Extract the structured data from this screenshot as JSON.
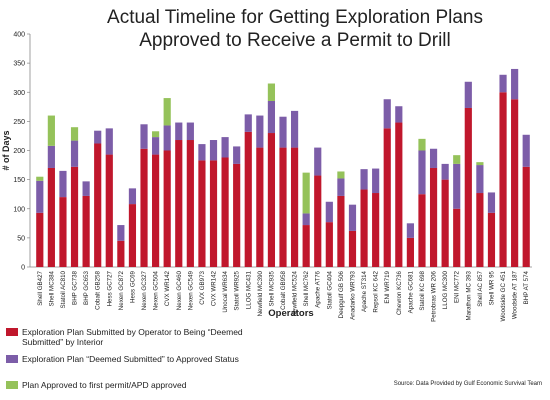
{
  "chart_data": {
    "type": "bar",
    "stacked": true,
    "title_line1": "Actual Timeline for Getting Exploration Plans",
    "title_line2": "Approved to Receive a Permit to Drill",
    "xlabel": "Operators",
    "ylabel": "# of Days",
    "ylim": [
      0,
      400
    ],
    "yticks": [
      0,
      50,
      100,
      150,
      200,
      250,
      300,
      350,
      400
    ],
    "grid": false,
    "legend_position": "bottom-left",
    "source": "Source: Data Provided by Gulf Economic Survival Team",
    "categories": [
      "Shell GB427",
      "Shell MC384",
      "Statoil AC810",
      "BHP GC738",
      "BHP GC653",
      "Cobalt GB258",
      "Hess GC727",
      "Nexen GC872",
      "Hess GC69",
      "Nexen GC327",
      "Nexen GC504",
      "CVX WR142",
      "Nexen GC460",
      "Nexen GC549",
      "CVX GB973",
      "CVX WR142",
      "Unocal WR634",
      "Statoil WR925",
      "LLOG MC431",
      "Newfield MC390",
      "Shell MC935",
      "Cobalt GB958",
      "Newfield MC524",
      "Shell MC762",
      "Apache AT76",
      "Statoil GC404",
      "Deepgulf GB 506",
      "Anadarko WR793",
      "Apache ST314",
      "Repsol KC 642",
      "ENI WR719",
      "Chevron KC736",
      "Apache GC681",
      "Statoil KC 698",
      "Petrobras WR 206",
      "LLOG MC300",
      "ENI MC772",
      "Marathon MC 393",
      "Shell AC 857",
      "Shell WR 95",
      "Woodside GC 451",
      "Woodside AT 187",
      "BHP AT 574"
    ],
    "series": [
      {
        "name": "Exploration Plan Submitted by Operator to Being “Deemed Submitted” by Interior",
        "color": "#c0172c",
        "values": [
          93,
          170,
          120,
          172,
          122,
          212,
          193,
          45,
          108,
          203,
          193,
          200,
          218,
          218,
          183,
          183,
          188,
          177,
          232,
          205,
          230,
          205,
          205,
          72,
          157,
          77,
          122,
          62,
          133,
          127,
          238,
          248,
          50,
          125,
          170,
          150,
          100,
          273,
          127,
          93,
          300,
          288,
          172
        ]
      },
      {
        "name": "Exploration Plan “Deemed Submitted” to Approved Status",
        "color": "#7c5da8",
        "values": [
          55,
          38,
          45,
          45,
          25,
          22,
          45,
          27,
          27,
          42,
          30,
          43,
          30,
          30,
          28,
          35,
          35,
          30,
          30,
          55,
          55,
          53,
          63,
          20,
          48,
          35,
          30,
          45,
          35,
          42,
          50,
          28,
          25,
          75,
          33,
          27,
          77,
          45,
          48,
          35,
          30,
          52,
          55
        ]
      },
      {
        "name": "Plan Approved to first permit/APD approved",
        "color": "#95c25a",
        "values": [
          7,
          52,
          0,
          23,
          0,
          0,
          0,
          0,
          0,
          0,
          10,
          47,
          0,
          0,
          0,
          0,
          0,
          0,
          0,
          0,
          30,
          0,
          0,
          70,
          0,
          0,
          12,
          0,
          0,
          0,
          0,
          0,
          0,
          20,
          0,
          0,
          15,
          0,
          5,
          0,
          0,
          0,
          0
        ]
      }
    ]
  }
}
